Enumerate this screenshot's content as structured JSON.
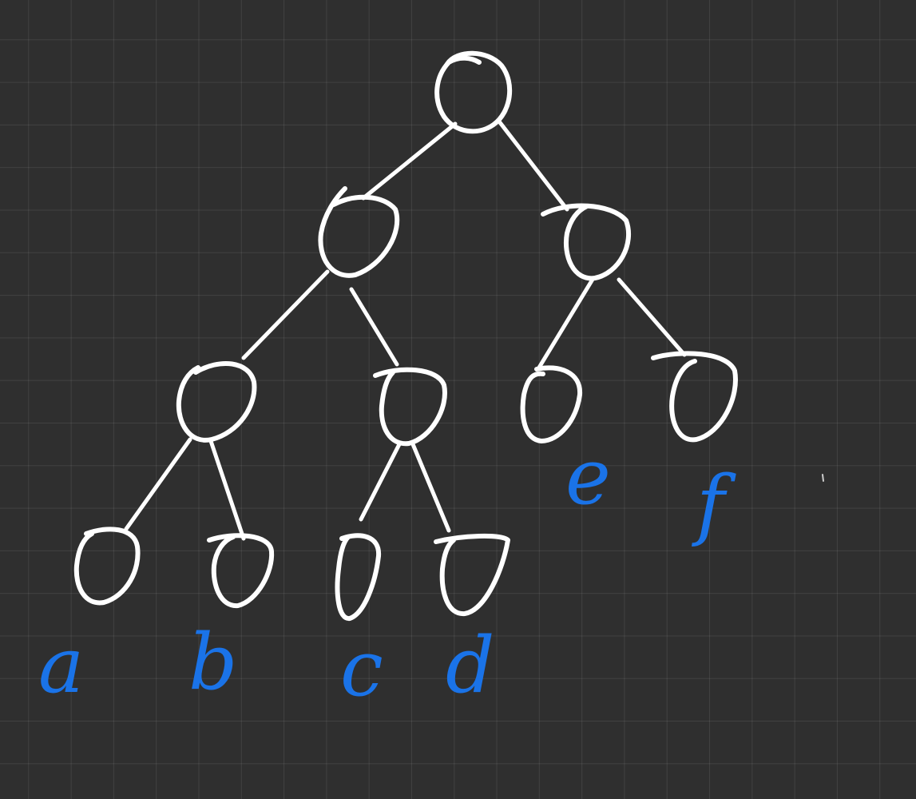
{
  "diagram": {
    "type": "binary-tree",
    "ink_color": "#ffffff",
    "label_color": "#1a73e8",
    "background_color": "#2f2f2f",
    "leaf_labels": [
      "a",
      "b",
      "c",
      "d",
      "e",
      "f"
    ]
  }
}
